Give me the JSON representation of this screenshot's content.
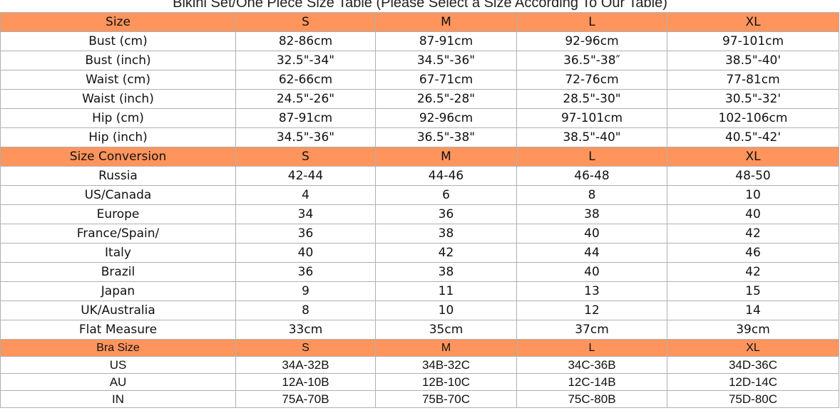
{
  "title": "Bikini Set/One Piece Size Table (Please Select a Size According To Our Table)",
  "colors": {
    "header_bg": "#ff955d",
    "border": "#b0b0b0"
  },
  "sections": [
    {
      "header": [
        "Size",
        "S",
        "M",
        "L",
        "XL"
      ],
      "rows": [
        [
          "Bust (cm)",
          "82-86cm",
          "87-91cm",
          "92-96cm",
          "97-101cm"
        ],
        [
          "Bust (inch)",
          "32.5\"-34\"",
          "34.5\"-36\"",
          "36.5\"-38″",
          "38.5\"-40'"
        ],
        [
          "Waist (cm)",
          "62-66cm",
          "67-71cm",
          "72-76cm",
          "77-81cm"
        ],
        [
          "Waist (inch)",
          "24.5\"-26\"",
          "26.5\"-28\"",
          "28.5\"-30\"",
          "30.5\"-32'"
        ],
        [
          "Hip (cm)",
          "87-91cm",
          "92-96cm",
          "97-101cm",
          "102-106cm"
        ],
        [
          "Hip (inch)",
          "34.5\"-36\"",
          "36.5\"-38\"",
          "38.5\"-40\"",
          "40.5\"-42'"
        ]
      ]
    },
    {
      "header": [
        "Size Conversion",
        "S",
        "M",
        "L",
        "XL"
      ],
      "rows": [
        [
          "Russia",
          "42-44",
          "44-46",
          "46-48",
          "48-50"
        ],
        [
          "US/Canada",
          "4",
          "6",
          "8",
          "10"
        ],
        [
          "Europe",
          "34",
          "36",
          "38",
          "40"
        ],
        [
          "France/Spain/",
          "36",
          "38",
          "40",
          "42"
        ],
        [
          "Italy",
          "40",
          "42",
          "44",
          "46"
        ],
        [
          "Brazil",
          "36",
          "38",
          "40",
          "42"
        ],
        [
          "Japan",
          "9",
          "11",
          "13",
          "15"
        ],
        [
          "UK/Australia",
          "8",
          "10",
          "12",
          "14"
        ],
        [
          "Flat Measure",
          "33cm",
          "35cm",
          "37cm",
          "39cm"
        ]
      ]
    },
    {
      "header": [
        "Bra Size",
        "S",
        "M",
        "L",
        "XL"
      ],
      "rows": [
        [
          "US",
          "34A-32B",
          "34B-32C",
          "34C-36B",
          "34D-36C"
        ],
        [
          "AU",
          "12A-10B",
          "12B-10C",
          "12C-14B",
          "12D-14C"
        ],
        [
          "IN",
          "75A-70B",
          "75B-70C",
          "75C-80B",
          "75D-80C"
        ]
      ]
    }
  ]
}
